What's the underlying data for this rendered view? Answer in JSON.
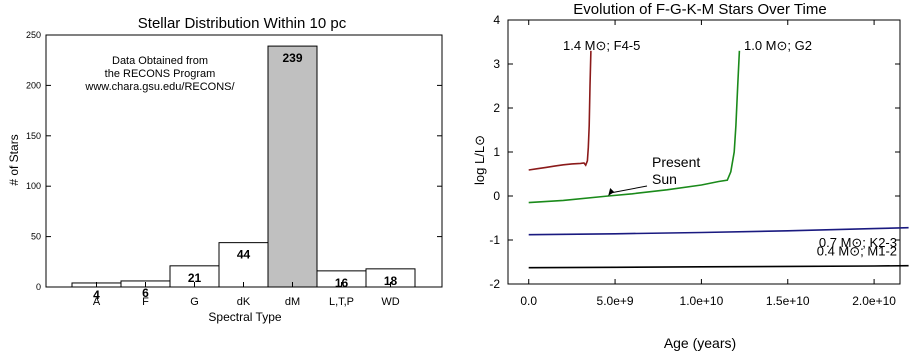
{
  "chart_data": [
    {
      "type": "bar",
      "title": "Stellar Distribution Within 10 pc",
      "xlabel": "Spectral Type",
      "ylabel": "# of Stars",
      "ylim": [
        0,
        250
      ],
      "yticks": [
        0,
        50,
        100,
        150,
        200,
        250
      ],
      "categories": [
        "A",
        "F",
        "G",
        "dK",
        "dM",
        "L,T,P",
        "WD"
      ],
      "values": [
        4,
        6,
        21,
        44,
        239,
        16,
        18
      ],
      "highlight_category": "dM",
      "bar_color": "#ffffff",
      "highlight_color": "#c0c0c0",
      "annotation": [
        "Data Obtained from",
        "the RECONS Program",
        "www.chara.gsu.edu/RECONS/"
      ],
      "grid": false
    },
    {
      "type": "line",
      "title": "Evolution of F-G-K-M Stars Over Time",
      "xlabel": "Age (years)",
      "ylabel": "log L/L⊙",
      "xlim": [
        -1200000000.0,
        21500000000.0
      ],
      "ylim": [
        -2,
        4
      ],
      "xticks": [
        0,
        5000000000.0,
        10000000000.0,
        15000000000.0,
        20000000000.0
      ],
      "xtick_labels": [
        "0.0",
        "5.0e+9",
        "1.0e+10",
        "1.5e+10",
        "2.0e+10"
      ],
      "yticks": [
        -2,
        -1,
        0,
        1,
        2,
        3,
        4
      ],
      "grid": false,
      "annotation": [
        "Present",
        "Sun"
      ],
      "series": [
        {
          "name": "1.4 M⊙; F4-5",
          "color": "#8b1a1a",
          "x": [
            0,
            500000000.0,
            1000000000.0,
            1500000000.0,
            2000000000.0,
            2500000000.0,
            3000000000.0,
            3200000000.0,
            3300000000.0,
            3400000000.0,
            3450000000.0,
            3500000000.0,
            3550000000.0,
            3600000000.0
          ],
          "y": [
            0.59,
            0.62,
            0.65,
            0.68,
            0.71,
            0.73,
            0.74,
            0.75,
            0.7,
            0.8,
            1.1,
            1.6,
            2.5,
            3.3
          ]
        },
        {
          "name": "1.0 M⊙; G2",
          "color": "#1a8a1a",
          "x": [
            0,
            2000000000.0,
            4600000000.0,
            6000000000.0,
            8000000000.0,
            10000000000.0,
            11000000000.0,
            11500000000.0,
            11700000000.0,
            11900000000.0,
            12000000000.0,
            12100000000.0,
            12200000000.0
          ],
          "y": [
            -0.15,
            -0.1,
            0.0,
            0.05,
            0.14,
            0.25,
            0.33,
            0.36,
            0.55,
            1.0,
            1.6,
            2.5,
            3.3
          ]
        },
        {
          "name": "0.7 M⊙; K2-3",
          "color": "#1a1a80",
          "x": [
            0,
            5000000000.0,
            10000000000.0,
            15000000000.0,
            20000000000.0,
            22000000000.0
          ],
          "y": [
            -0.88,
            -0.86,
            -0.83,
            -0.79,
            -0.74,
            -0.72
          ]
        },
        {
          "name": "0.4 M⊙; M1-2",
          "color": "#000000",
          "x": [
            0,
            5000000000.0,
            10000000000.0,
            15000000000.0,
            20000000000.0,
            22000000000.0
          ],
          "y": [
            -1.63,
            -1.62,
            -1.61,
            -1.6,
            -1.59,
            -1.585
          ]
        }
      ]
    }
  ]
}
